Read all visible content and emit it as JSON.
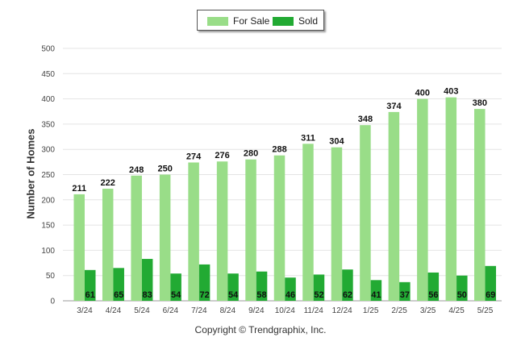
{
  "chart_data": {
    "type": "bar",
    "categories": [
      "3/24",
      "4/24",
      "5/24",
      "6/24",
      "7/24",
      "8/24",
      "9/24",
      "10/24",
      "11/24",
      "12/24",
      "1/25",
      "2/25",
      "3/25",
      "4/25",
      "5/25"
    ],
    "series": [
      {
        "name": "For Sale",
        "color": "#99dd88",
        "values": [
          211,
          222,
          248,
          250,
          274,
          276,
          280,
          288,
          311,
          304,
          348,
          374,
          400,
          403,
          380
        ]
      },
      {
        "name": "Sold",
        "color": "#22aa33",
        "values": [
          61,
          65,
          83,
          54,
          72,
          54,
          58,
          46,
          52,
          62,
          41,
          37,
          56,
          50,
          69
        ]
      }
    ],
    "ylabel": "Number of Homes",
    "xlabel": "",
    "ylim": [
      0,
      500
    ],
    "yticks": [
      0,
      50,
      100,
      150,
      200,
      250,
      300,
      350,
      400,
      450,
      500
    ],
    "legend": "top-center",
    "grid": true
  },
  "footer": "Copyright © Trendgraphix, Inc."
}
